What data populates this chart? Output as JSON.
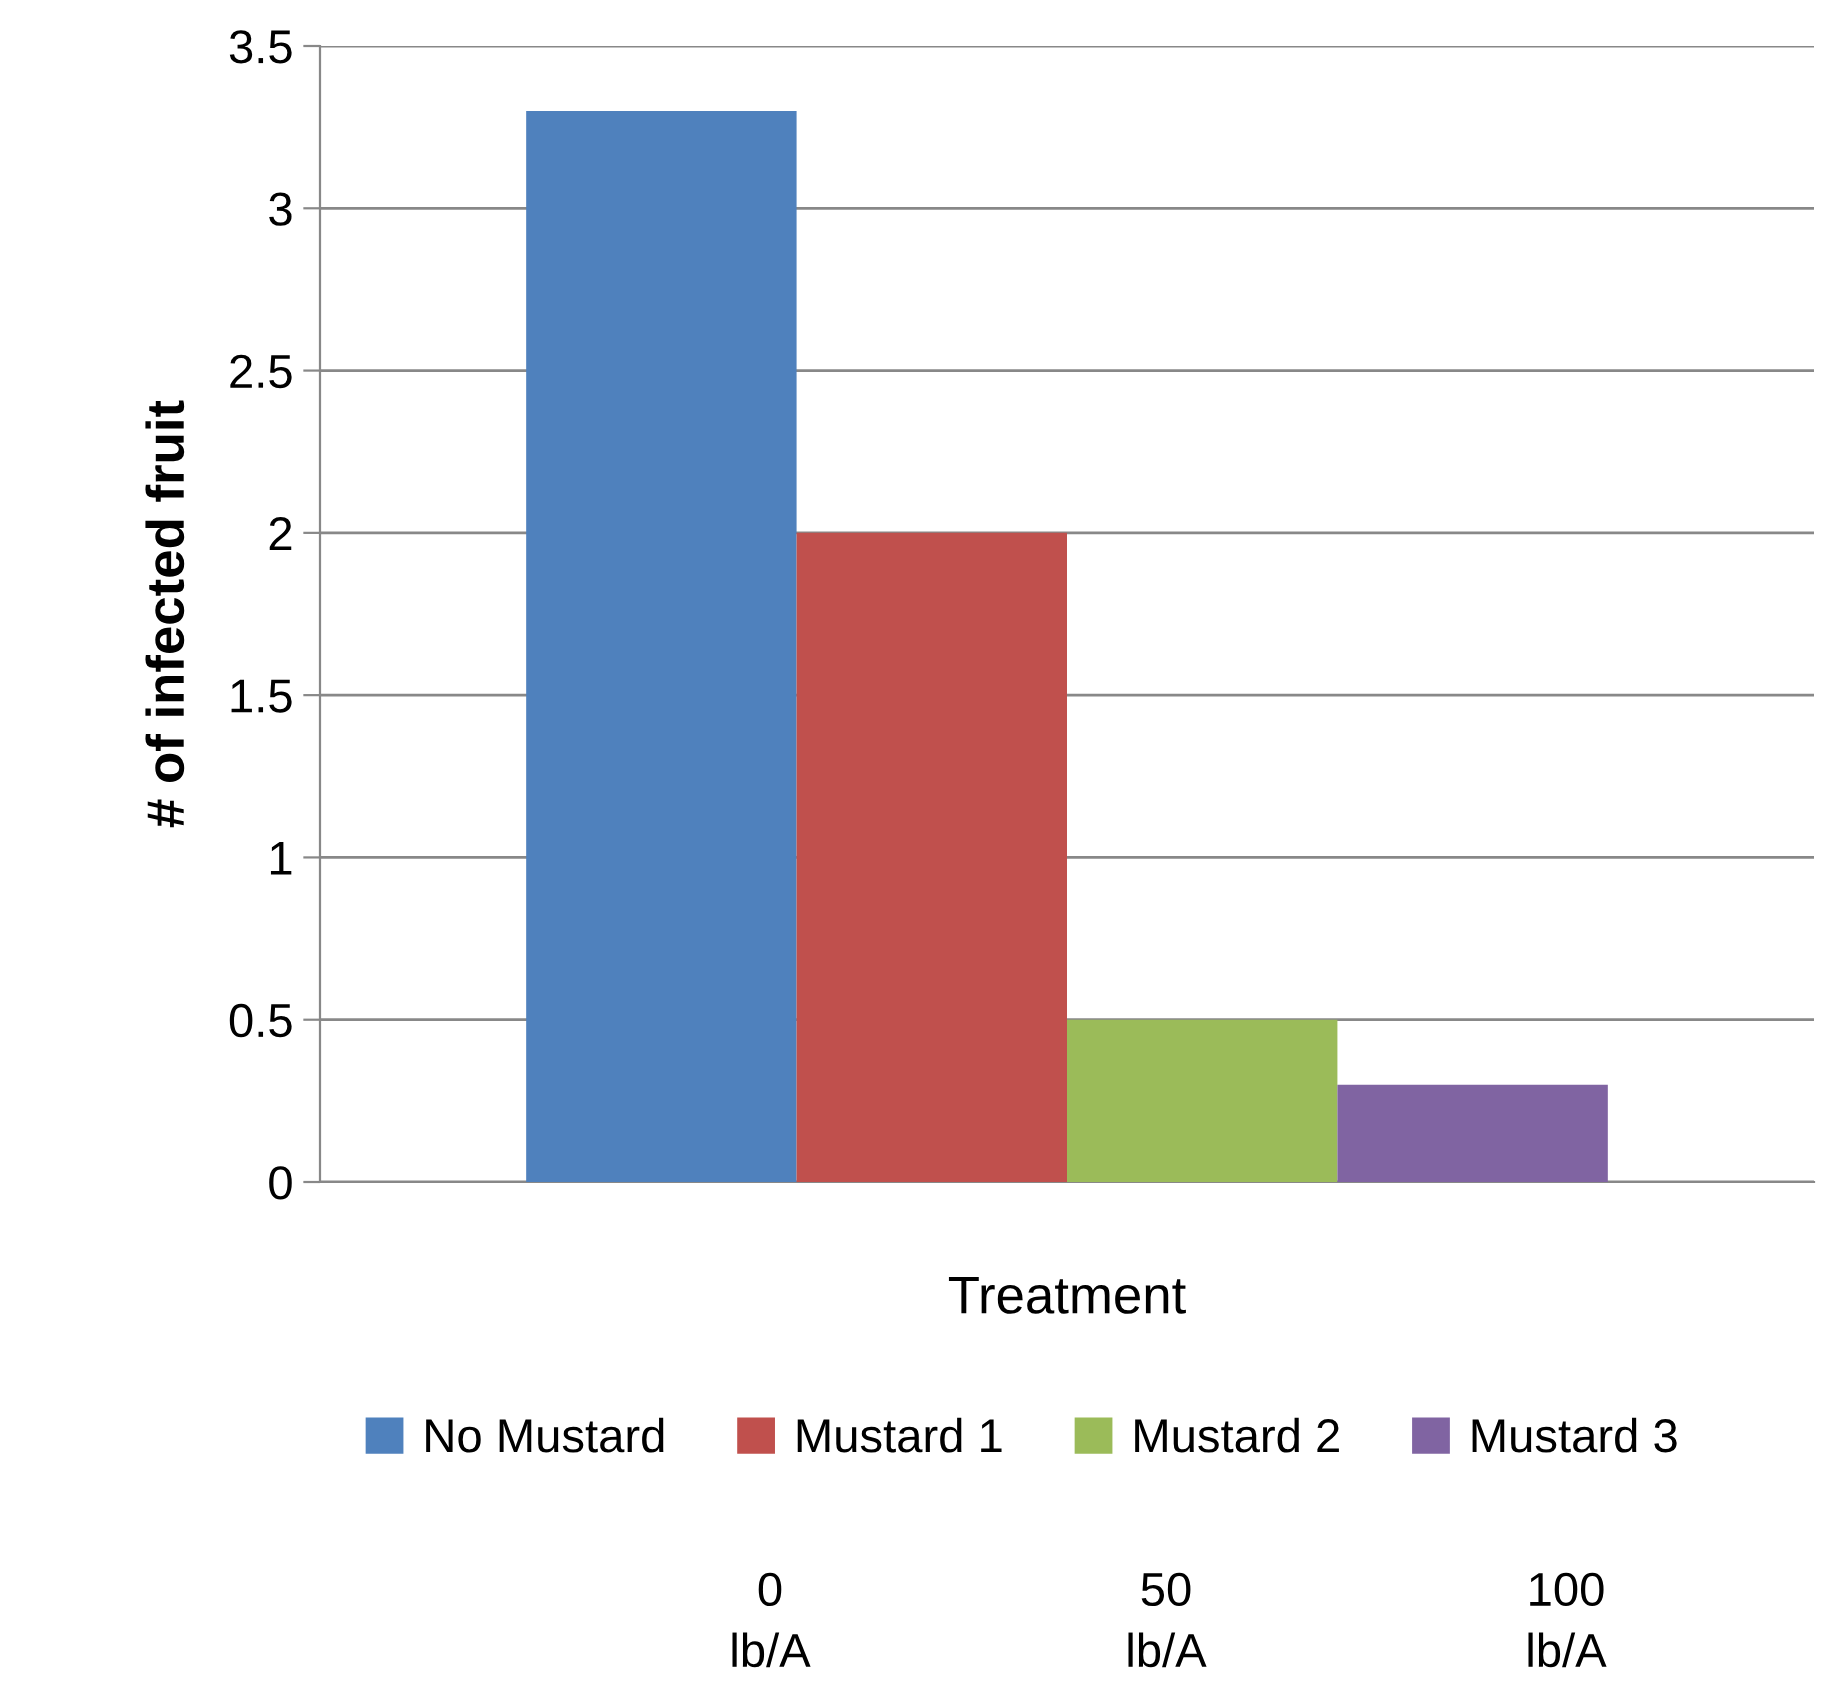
{
  "chart_data": {
    "type": "bar",
    "xlabel": "Treatment",
    "ylabel": "# of infected fruit",
    "categories": [
      null
    ],
    "series": [
      {
        "name": "No Mustard",
        "color": "#4f81bd",
        "values": [
          3.3
        ]
      },
      {
        "name": "Mustard 1",
        "color": "#c0504d",
        "values": [
          2
        ]
      },
      {
        "name": "Mustard 2",
        "color": "#9bbb59",
        "values": [
          0.5
        ]
      },
      {
        "name": "Mustard 3",
        "color": "#8064a2",
        "values": [
          0.3
        ]
      }
    ],
    "ylim": [
      0,
      3.5
    ],
    "yticks": [
      0,
      0.5,
      1,
      1.5,
      2,
      2.5,
      3,
      3.5
    ],
    "grid": "y",
    "legend": "bottom",
    "annotations": [
      "0 lb/A",
      "50 lb/A",
      "100 lb/A"
    ]
  }
}
